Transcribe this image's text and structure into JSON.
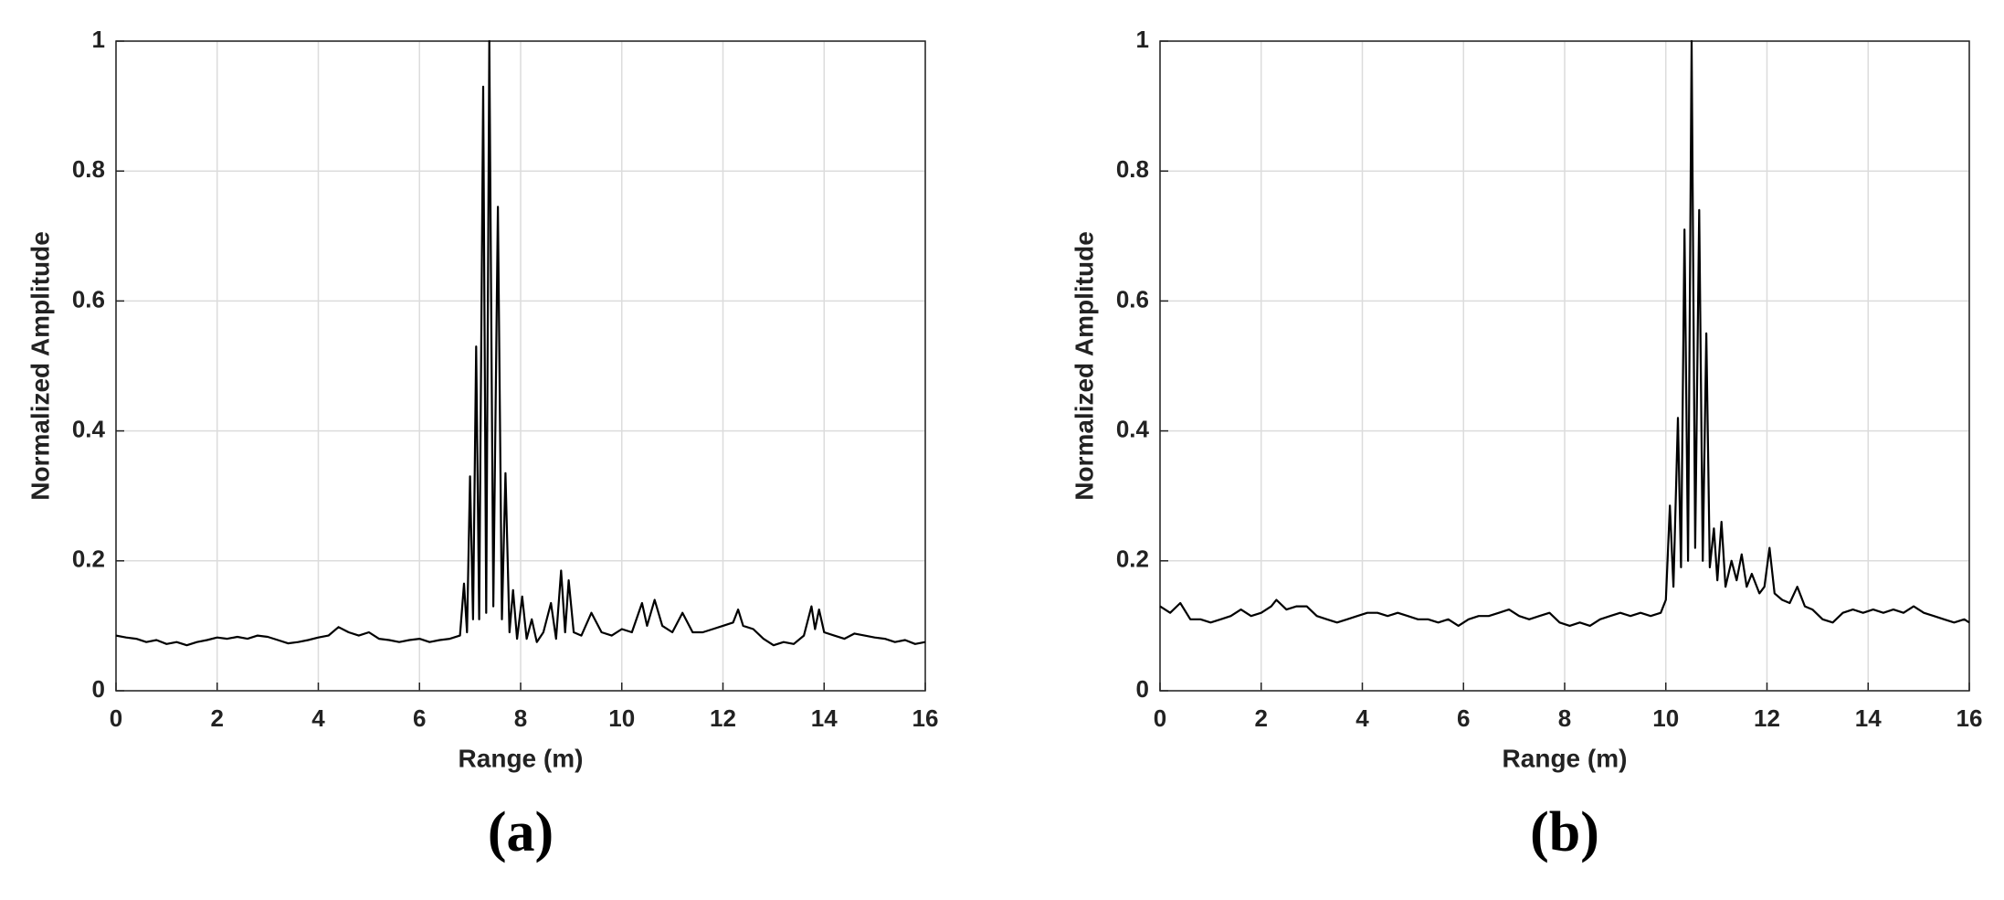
{
  "chart_data": [
    {
      "type": "line",
      "caption": "(a)",
      "x_label": "Range (m)",
      "y_label": "Normalized Amplitude",
      "color": "#000000",
      "grid": true,
      "xlim": [
        0,
        16
      ],
      "xticks": [
        0,
        2,
        4,
        6,
        8,
        10,
        12,
        14,
        16
      ],
      "ylim": [
        0,
        1
      ],
      "yticks": [
        0,
        0.2,
        0.4,
        0.6,
        0.8,
        1
      ],
      "x": [
        0,
        0.2,
        0.4,
        0.6,
        0.8,
        1.0,
        1.2,
        1.4,
        1.6,
        1.8,
        2.0,
        2.2,
        2.4,
        2.6,
        2.8,
        3.0,
        3.2,
        3.4,
        3.6,
        3.8,
        4.0,
        4.2,
        4.4,
        4.6,
        4.8,
        5.0,
        5.2,
        5.4,
        5.6,
        5.8,
        6.0,
        6.2,
        6.4,
        6.6,
        6.8,
        6.88,
        6.94,
        7.0,
        7.06,
        7.12,
        7.18,
        7.26,
        7.32,
        7.38,
        7.46,
        7.55,
        7.63,
        7.7,
        7.78,
        7.85,
        7.93,
        8.03,
        8.12,
        8.22,
        8.32,
        8.45,
        8.6,
        8.7,
        8.8,
        8.88,
        8.95,
        9.05,
        9.2,
        9.4,
        9.6,
        9.8,
        10.0,
        10.2,
        10.4,
        10.5,
        10.65,
        10.8,
        11.0,
        11.2,
        11.4,
        11.6,
        11.8,
        12.0,
        12.2,
        12.3,
        12.4,
        12.6,
        12.8,
        13.0,
        13.2,
        13.4,
        13.6,
        13.75,
        13.82,
        13.9,
        14.0,
        14.2,
        14.4,
        14.6,
        14.8,
        15.0,
        15.2,
        15.4,
        15.6,
        15.8,
        16.0
      ],
      "values": [
        0.085,
        0.082,
        0.08,
        0.075,
        0.078,
        0.072,
        0.075,
        0.07,
        0.075,
        0.078,
        0.082,
        0.08,
        0.083,
        0.08,
        0.085,
        0.083,
        0.078,
        0.073,
        0.075,
        0.078,
        0.082,
        0.085,
        0.098,
        0.09,
        0.085,
        0.09,
        0.08,
        0.078,
        0.075,
        0.078,
        0.08,
        0.075,
        0.078,
        0.08,
        0.085,
        0.165,
        0.09,
        0.33,
        0.11,
        0.53,
        0.11,
        0.93,
        0.12,
        1.0,
        0.13,
        0.745,
        0.11,
        0.335,
        0.09,
        0.155,
        0.08,
        0.145,
        0.08,
        0.11,
        0.075,
        0.09,
        0.135,
        0.08,
        0.185,
        0.09,
        0.17,
        0.09,
        0.085,
        0.12,
        0.09,
        0.085,
        0.095,
        0.09,
        0.135,
        0.1,
        0.14,
        0.1,
        0.09,
        0.12,
        0.09,
        0.09,
        0.095,
        0.1,
        0.105,
        0.125,
        0.1,
        0.095,
        0.08,
        0.07,
        0.075,
        0.072,
        0.085,
        0.13,
        0.095,
        0.125,
        0.09,
        0.085,
        0.08,
        0.088,
        0.085,
        0.082,
        0.08,
        0.075,
        0.078,
        0.072,
        0.075
      ]
    },
    {
      "type": "line",
      "caption": "(b)",
      "x_label": "Range (m)",
      "y_label": "Normalized Amplitude",
      "color": "#000000",
      "grid": true,
      "xlim": [
        0,
        16
      ],
      "xticks": [
        0,
        2,
        4,
        6,
        8,
        10,
        12,
        14,
        16
      ],
      "ylim": [
        0,
        1
      ],
      "yticks": [
        0,
        0.2,
        0.4,
        0.6,
        0.8,
        1
      ],
      "x": [
        0,
        0.2,
        0.4,
        0.6,
        0.8,
        1.0,
        1.2,
        1.4,
        1.6,
        1.8,
        2.0,
        2.2,
        2.3,
        2.5,
        2.7,
        2.9,
        3.1,
        3.3,
        3.5,
        3.7,
        3.9,
        4.1,
        4.3,
        4.5,
        4.7,
        4.9,
        5.1,
        5.3,
        5.5,
        5.7,
        5.9,
        6.1,
        6.3,
        6.5,
        6.7,
        6.9,
        7.1,
        7.3,
        7.5,
        7.7,
        7.9,
        8.1,
        8.3,
        8.5,
        8.7,
        8.9,
        9.1,
        9.3,
        9.5,
        9.7,
        9.9,
        10.0,
        10.08,
        10.15,
        10.24,
        10.3,
        10.37,
        10.44,
        10.51,
        10.58,
        10.66,
        10.73,
        10.8,
        10.87,
        10.95,
        11.02,
        11.1,
        11.18,
        11.3,
        11.4,
        11.5,
        11.6,
        11.7,
        11.85,
        11.95,
        12.05,
        12.15,
        12.3,
        12.45,
        12.6,
        12.75,
        12.9,
        13.1,
        13.3,
        13.5,
        13.7,
        13.9,
        14.1,
        14.3,
        14.5,
        14.7,
        14.9,
        15.1,
        15.3,
        15.5,
        15.7,
        15.9,
        16.0
      ],
      "values": [
        0.13,
        0.12,
        0.135,
        0.11,
        0.11,
        0.105,
        0.11,
        0.115,
        0.125,
        0.115,
        0.12,
        0.13,
        0.14,
        0.125,
        0.13,
        0.13,
        0.115,
        0.11,
        0.105,
        0.11,
        0.115,
        0.12,
        0.12,
        0.115,
        0.12,
        0.115,
        0.11,
        0.11,
        0.105,
        0.11,
        0.1,
        0.11,
        0.115,
        0.115,
        0.12,
        0.125,
        0.115,
        0.11,
        0.115,
        0.12,
        0.105,
        0.1,
        0.105,
        0.1,
        0.11,
        0.115,
        0.12,
        0.115,
        0.12,
        0.115,
        0.12,
        0.14,
        0.285,
        0.16,
        0.42,
        0.19,
        0.71,
        0.2,
        1.0,
        0.22,
        0.74,
        0.2,
        0.55,
        0.19,
        0.25,
        0.17,
        0.26,
        0.16,
        0.2,
        0.17,
        0.21,
        0.16,
        0.18,
        0.15,
        0.16,
        0.22,
        0.15,
        0.14,
        0.135,
        0.16,
        0.13,
        0.125,
        0.11,
        0.105,
        0.12,
        0.125,
        0.12,
        0.125,
        0.12,
        0.125,
        0.12,
        0.13,
        0.12,
        0.115,
        0.11,
        0.105,
        0.11,
        0.105
      ]
    }
  ]
}
